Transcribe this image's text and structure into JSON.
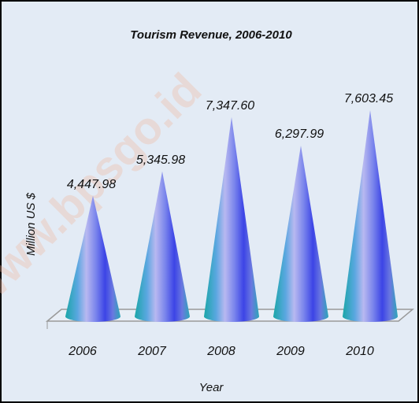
{
  "chart_data": {
    "type": "cone",
    "title": "Tourism Revenue, 2006-2010",
    "categories": [
      "2006",
      "2007",
      "2008",
      "2009",
      "2010"
    ],
    "values": [
      4447.98,
      5345.98,
      7347.6,
      6297.99,
      7603.45
    ],
    "value_labels": [
      "4,447.98",
      "5,345.98",
      "7,347.60",
      "6,297.99",
      "7,603.45"
    ],
    "y_label": "Million  US $",
    "x_label": "Year",
    "watermark": "www.bpsgo.id"
  }
}
